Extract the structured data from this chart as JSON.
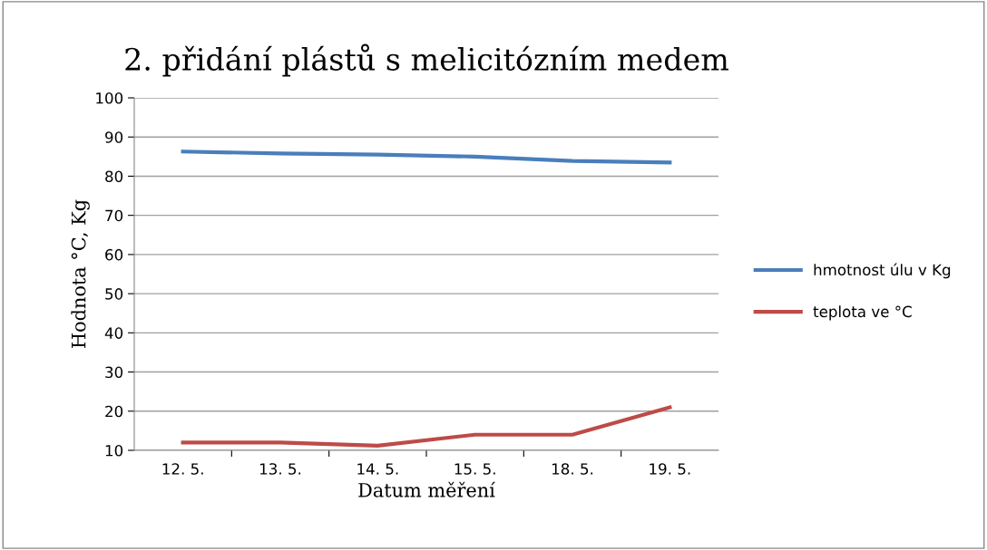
{
  "chart_data": {
    "type": "line",
    "title": "2. přidání plástů s melicitózním medem",
    "xlabel": "Datum měření",
    "ylabel": "Hodnota °C, Kg",
    "categories": [
      "12. 5.",
      "13. 5.",
      "14. 5.",
      "15. 5.",
      "18. 5.",
      "19. 5."
    ],
    "series": [
      {
        "name": "hmotnost úlu v Kg",
        "color": "#4a7ebb",
        "values": [
          86.3,
          85.8,
          85.5,
          85.0,
          83.9,
          83.5
        ]
      },
      {
        "name": "teplota ve °C",
        "color": "#be4b48",
        "values": [
          12,
          12,
          11.2,
          14,
          14,
          21
        ]
      }
    ],
    "ylim": [
      10,
      100
    ],
    "yticks": [
      10,
      20,
      30,
      40,
      50,
      60,
      70,
      80,
      90,
      100
    ],
    "grid": "y",
    "legend": "right",
    "marker": "none"
  }
}
